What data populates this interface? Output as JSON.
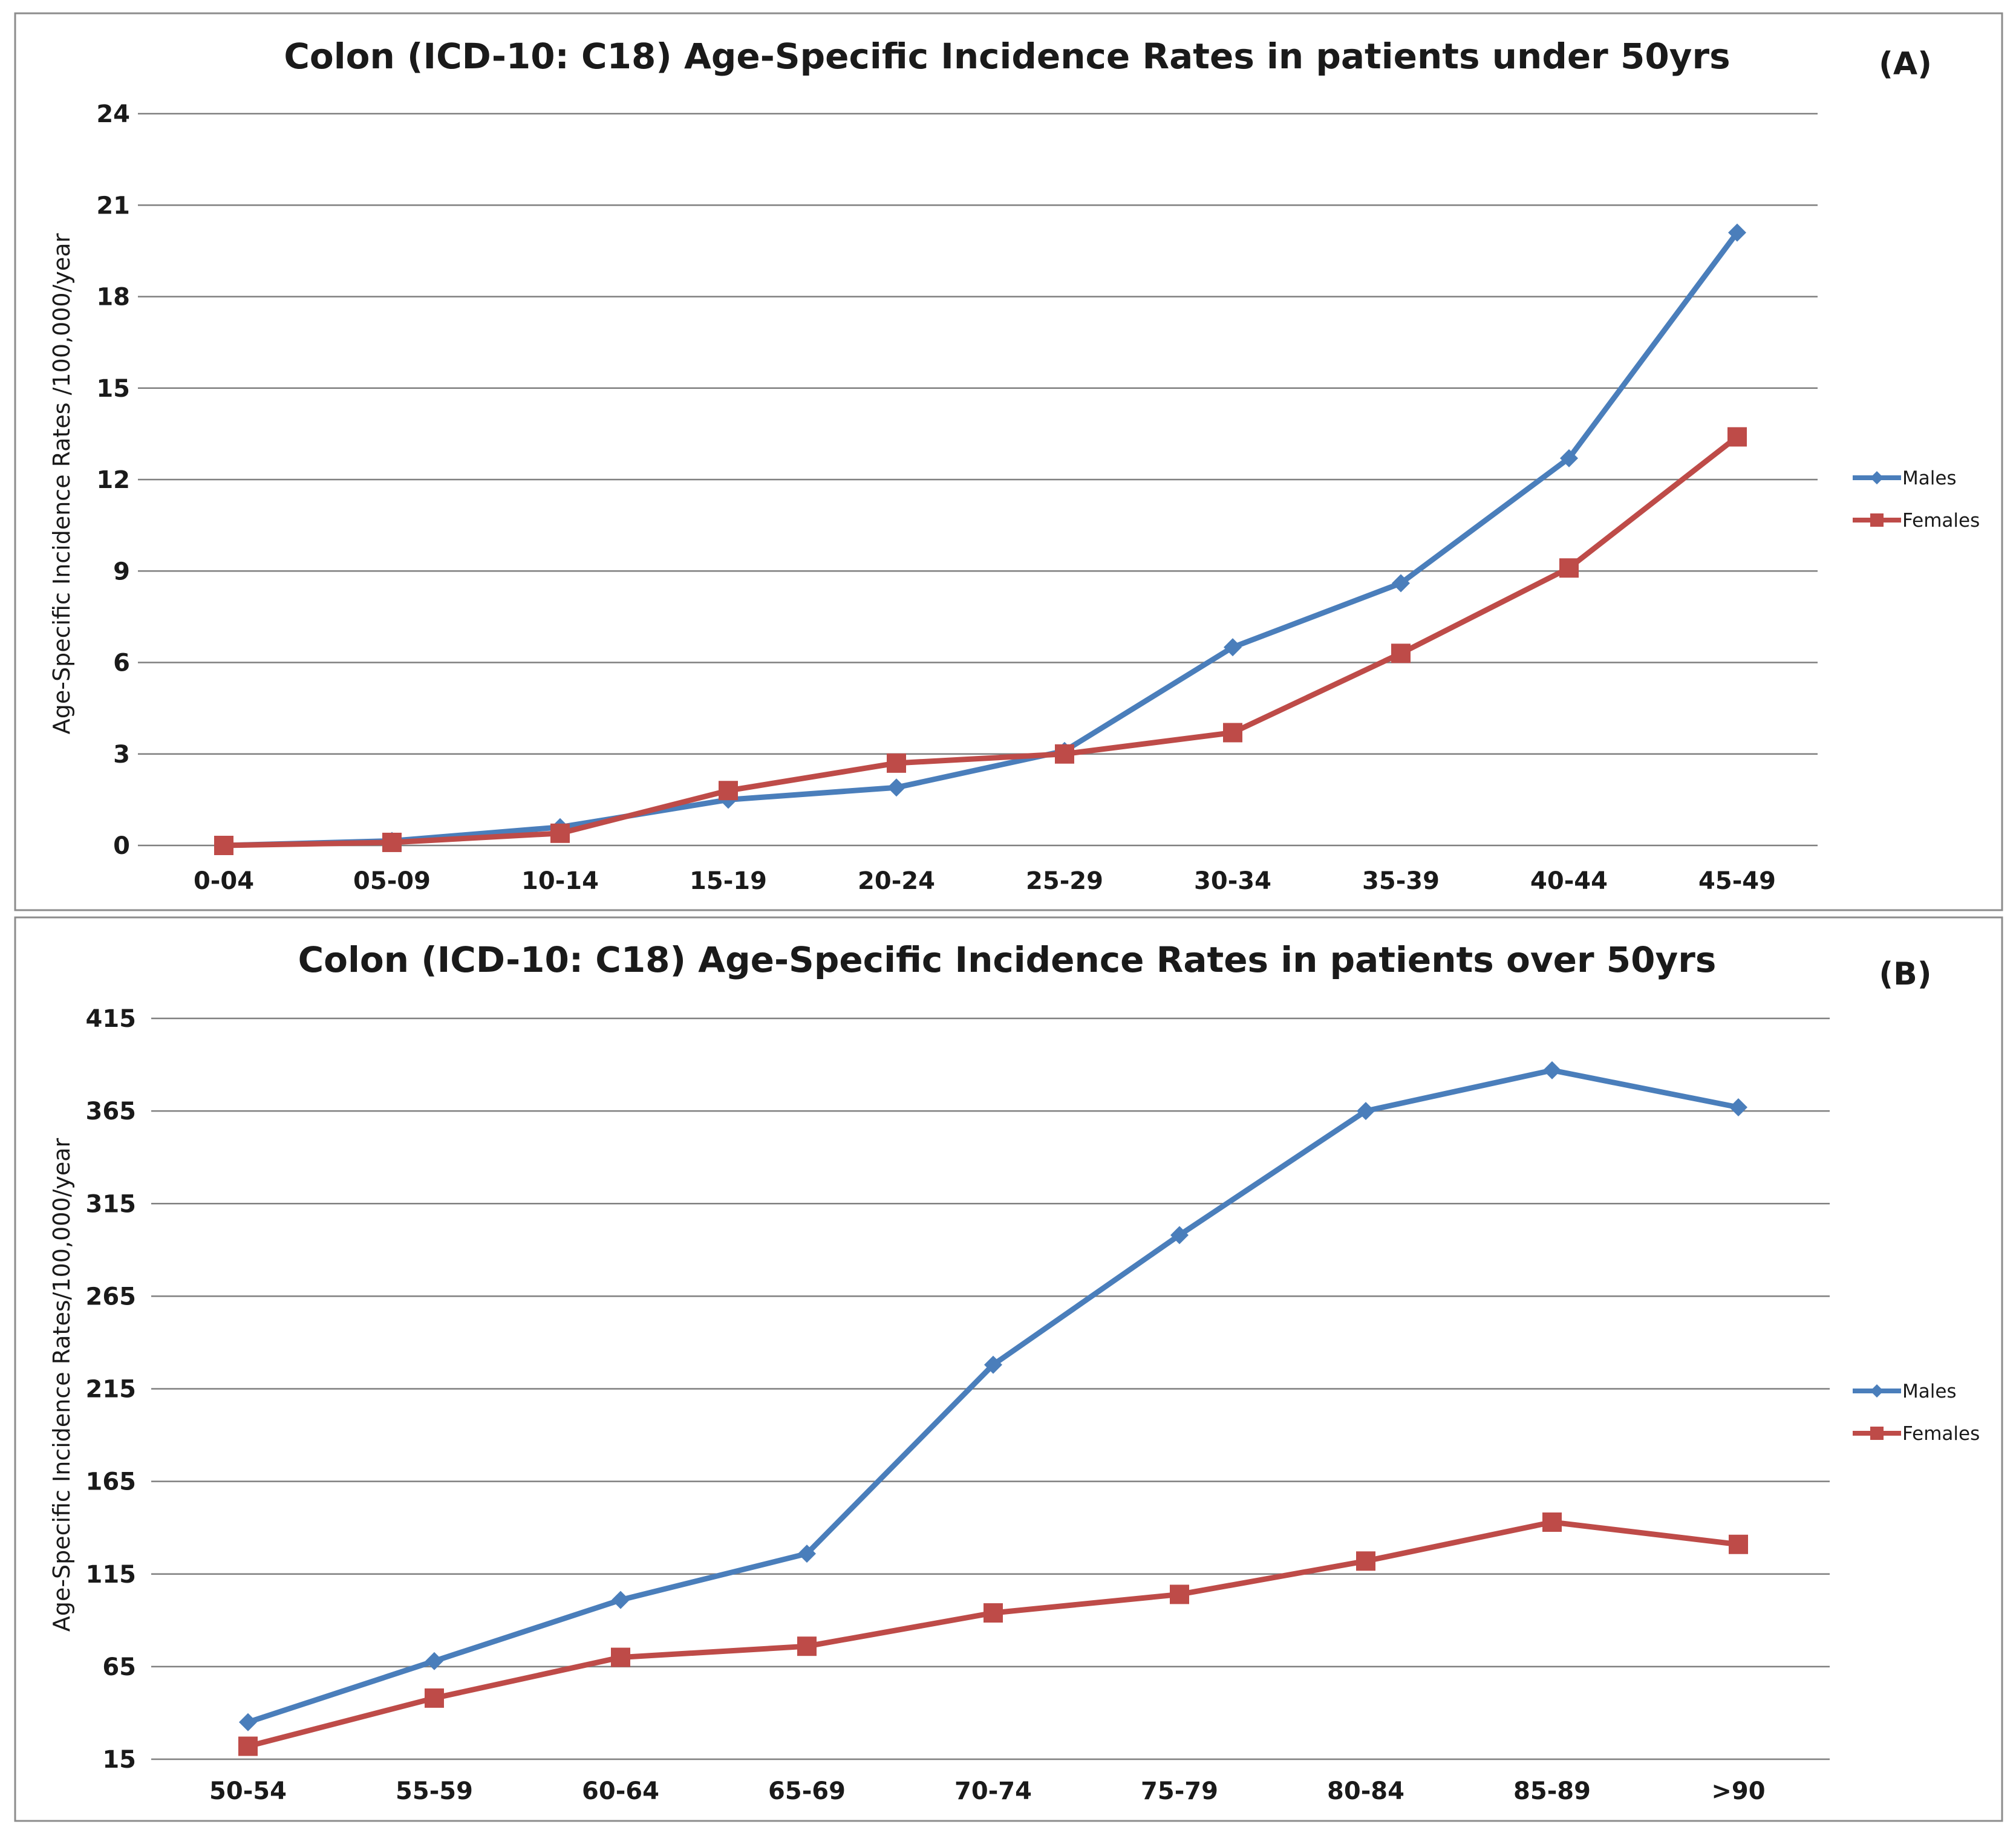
{
  "chart_data": [
    {
      "type": "line",
      "panel_label": "(A)",
      "title": "Colon (ICD-10: C18) Age-Specific Incidence Rates in patients under 50yrs",
      "xlabel": "",
      "ylabel": "Age-Specific Incidence Rates /100,000/year",
      "ylim": [
        0,
        24
      ],
      "yticks": [
        0,
        3,
        6,
        9,
        12,
        15,
        18,
        21,
        24
      ],
      "grid": true,
      "legend_position": "right",
      "categories": [
        "0-04",
        "05-09",
        "10-14",
        "15-19",
        "20-24",
        "25-29",
        "30-34",
        "35-39",
        "40-44",
        "45-49"
      ],
      "series": [
        {
          "name": "Males",
          "color": "#4a7ebb",
          "marker": "diamond",
          "values": [
            0.0,
            0.15,
            0.6,
            1.5,
            1.9,
            3.1,
            6.5,
            8.6,
            12.7,
            20.1
          ]
        },
        {
          "name": "Females",
          "color": "#be4b48",
          "marker": "square",
          "values": [
            0.0,
            0.1,
            0.4,
            1.8,
            2.7,
            3.0,
            3.7,
            6.3,
            9.1,
            13.4
          ]
        }
      ]
    },
    {
      "type": "line",
      "panel_label": "(B)",
      "title": "Colon (ICD-10: C18) Age-Specific Incidence Rates in patients over 50yrs",
      "xlabel": "",
      "ylabel": "Age-Specific Incidence Rates/100,000/year",
      "ylim": [
        15,
        415
      ],
      "yticks": [
        15,
        65,
        115,
        165,
        215,
        265,
        315,
        365,
        415
      ],
      "grid": true,
      "legend_position": "right",
      "categories": [
        "50-54",
        "55-59",
        "60-64",
        "65-69",
        "70-74",
        "75-79",
        "80-84",
        "85-89",
        ">90"
      ],
      "series": [
        {
          "name": "Males",
          "color": "#4a7ebb",
          "marker": "diamond",
          "values": [
            35,
            68,
            101,
            126,
            228,
            298,
            365,
            387,
            367
          ]
        },
        {
          "name": "Females",
          "color": "#be4b48",
          "marker": "square",
          "values": [
            22,
            48,
            70,
            76,
            94,
            104,
            122,
            143,
            131
          ]
        }
      ]
    }
  ]
}
